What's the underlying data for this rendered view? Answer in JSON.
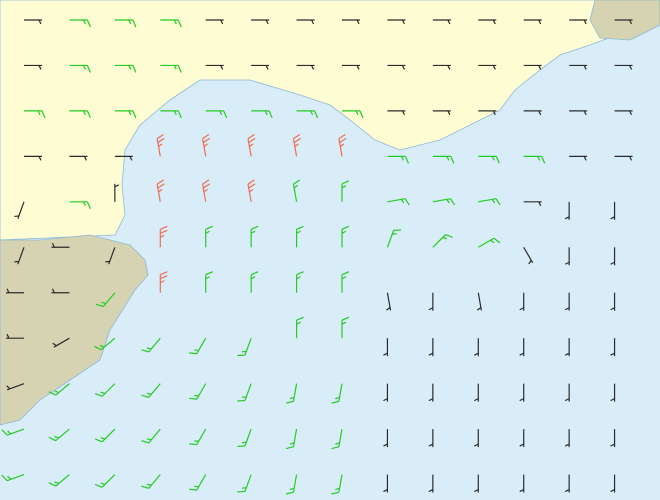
{
  "map": {
    "wind_barbs": {
      "colors": [
        "#2b2b2b",
        "#22cc22",
        "#f26b50"
      ],
      "speeds": [
        [
          5,
          15,
          15,
          15,
          5,
          5,
          5,
          5,
          5,
          5,
          5,
          5,
          5,
          5
        ],
        [
          5,
          15,
          15,
          15,
          5,
          5,
          5,
          5,
          5,
          5,
          5,
          5,
          5,
          5
        ],
        [
          15,
          15,
          15,
          15,
          15,
          15,
          15,
          15,
          5,
          5,
          5,
          5,
          5,
          5
        ],
        [
          5,
          5,
          5,
          25,
          25,
          25,
          25,
          25,
          15,
          15,
          15,
          15,
          5,
          5
        ],
        [
          5,
          15,
          5,
          25,
          25,
          25,
          15,
          15,
          15,
          15,
          15,
          5,
          5,
          5
        ],
        [
          5,
          5,
          5,
          25,
          15,
          15,
          15,
          15,
          15,
          15,
          15,
          5,
          5,
          5
        ],
        [
          5,
          5,
          15,
          25,
          15,
          15,
          15,
          15,
          5,
          5,
          5,
          5,
          5,
          5
        ],
        [
          5,
          5,
          15,
          15,
          15,
          15,
          15,
          15,
          5,
          5,
          5,
          5,
          5,
          5
        ],
        [
          5,
          15,
          15,
          15,
          15,
          15,
          15,
          15,
          5,
          5,
          5,
          5,
          5,
          5
        ],
        [
          15,
          15,
          15,
          15,
          15,
          15,
          15,
          15,
          5,
          5,
          5,
          5,
          5,
          5
        ],
        [
          15,
          15,
          15,
          15,
          15,
          15,
          15,
          15,
          5,
          5,
          5,
          5,
          5,
          5
        ]
      ],
      "directions": [
        [
          90,
          90,
          90,
          90,
          90,
          90,
          90,
          90,
          90,
          90,
          90,
          90,
          90,
          90
        ],
        [
          90,
          90,
          90,
          90,
          90,
          90,
          90,
          90,
          90,
          90,
          90,
          90,
          90,
          90
        ],
        [
          90,
          90,
          90,
          90,
          90,
          90,
          90,
          90,
          90,
          90,
          90,
          90,
          90,
          90
        ],
        [
          90,
          90,
          90,
          350,
          350,
          350,
          350,
          350,
          90,
          90,
          90,
          90,
          90,
          90
        ],
        [
          200,
          90,
          0,
          350,
          350,
          350,
          350,
          0,
          80,
          80,
          80,
          90,
          180,
          180
        ],
        [
          200,
          270,
          200,
          0,
          0,
          0,
          0,
          0,
          20,
          45,
          60,
          150,
          180,
          180
        ],
        [
          270,
          270,
          220,
          0,
          0,
          0,
          0,
          0,
          170,
          180,
          170,
          180,
          180,
          180
        ],
        [
          270,
          240,
          230,
          220,
          210,
          200,
          0,
          0,
          180,
          180,
          180,
          180,
          180,
          180
        ],
        [
          250,
          230,
          225,
          220,
          210,
          200,
          190,
          190,
          180,
          180,
          180,
          180,
          180,
          180
        ],
        [
          250,
          230,
          225,
          220,
          210,
          200,
          190,
          190,
          180,
          180,
          180,
          180,
          180,
          180
        ],
        [
          250,
          230,
          225,
          220,
          210,
          200,
          190,
          190,
          180,
          180,
          180,
          180,
          180,
          180
        ]
      ]
    }
  }
}
